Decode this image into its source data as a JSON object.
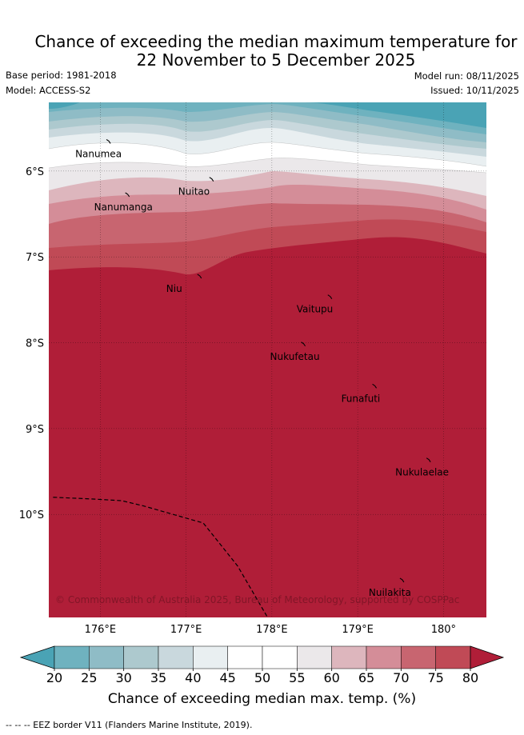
{
  "title": {
    "line1": "Chance of exceeding the median maximum temperature for",
    "line2": "22 November to 5 December 2025"
  },
  "meta": {
    "base_period": "Base period: 1981-2018",
    "model": "Model: ACCESS-S2",
    "model_run": "Model run: 08/11/2025",
    "issued": "Issued: 10/11/2025"
  },
  "map": {
    "lon_labels": [
      "176°E",
      "177°E",
      "178°E",
      "179°E",
      "180°"
    ],
    "lat_labels": [
      "6°S",
      "7°S",
      "8°S",
      "9°S",
      "10°S"
    ],
    "lon_values": [
      176,
      177,
      178,
      179,
      180
    ],
    "lat_values": [
      6,
      7,
      8,
      9,
      10
    ],
    "lon_range": [
      175.4,
      180.5
    ],
    "lat_range": [
      5.2,
      11.2
    ],
    "places": [
      {
        "name": "Nanumea",
        "lon": 176.1,
        "lat": 5.67
      },
      {
        "name": "Nuitao",
        "lon": 177.3,
        "lat": 6.11
      },
      {
        "name": "Nanumanga",
        "lon": 176.32,
        "lat": 6.29
      },
      {
        "name": "Niu",
        "lon": 177.16,
        "lat": 7.24
      },
      {
        "name": "Vaitupu",
        "lon": 178.68,
        "lat": 7.48
      },
      {
        "name": "Nukufetau",
        "lon": 178.37,
        "lat": 8.03
      },
      {
        "name": "Funafuti",
        "lon": 179.2,
        "lat": 8.52
      },
      {
        "name": "Nukulaelae",
        "lon": 179.83,
        "lat": 9.38
      },
      {
        "name": "Nuilakita",
        "lon": 179.52,
        "lat": 10.78
      }
    ],
    "eez_border": [
      [
        175.45,
        9.8
      ],
      [
        175.9,
        9.82
      ],
      [
        176.25,
        9.84
      ],
      [
        176.5,
        9.9
      ],
      [
        177.2,
        10.1
      ],
      [
        177.6,
        10.6
      ],
      [
        177.95,
        11.2
      ]
    ],
    "copyright": "© Commonwealth of Australia 2025, Bureau of Meteorology, supported by COSPPac"
  },
  "colorbar": {
    "ticks": [
      "20",
      "25",
      "30",
      "35",
      "40",
      "45",
      "50",
      "55",
      "60",
      "65",
      "70",
      "75",
      "80"
    ],
    "colors": [
      "#4aa3b5",
      "#6fb2bf",
      "#8fbcc6",
      "#adc9ce",
      "#c9d8dd",
      "#e9eff1",
      "#ffffff",
      "#ffffff",
      "#ebe8ea",
      "#ddb6bd",
      "#d48d98",
      "#c86570",
      "#c04a56",
      "#b01e38"
    ],
    "label": "Chance of exceeding median max. temp. (%)"
  },
  "footnote": "--  --  -- EEZ border V11 (Flanders Marine Institute, 2019)."
}
